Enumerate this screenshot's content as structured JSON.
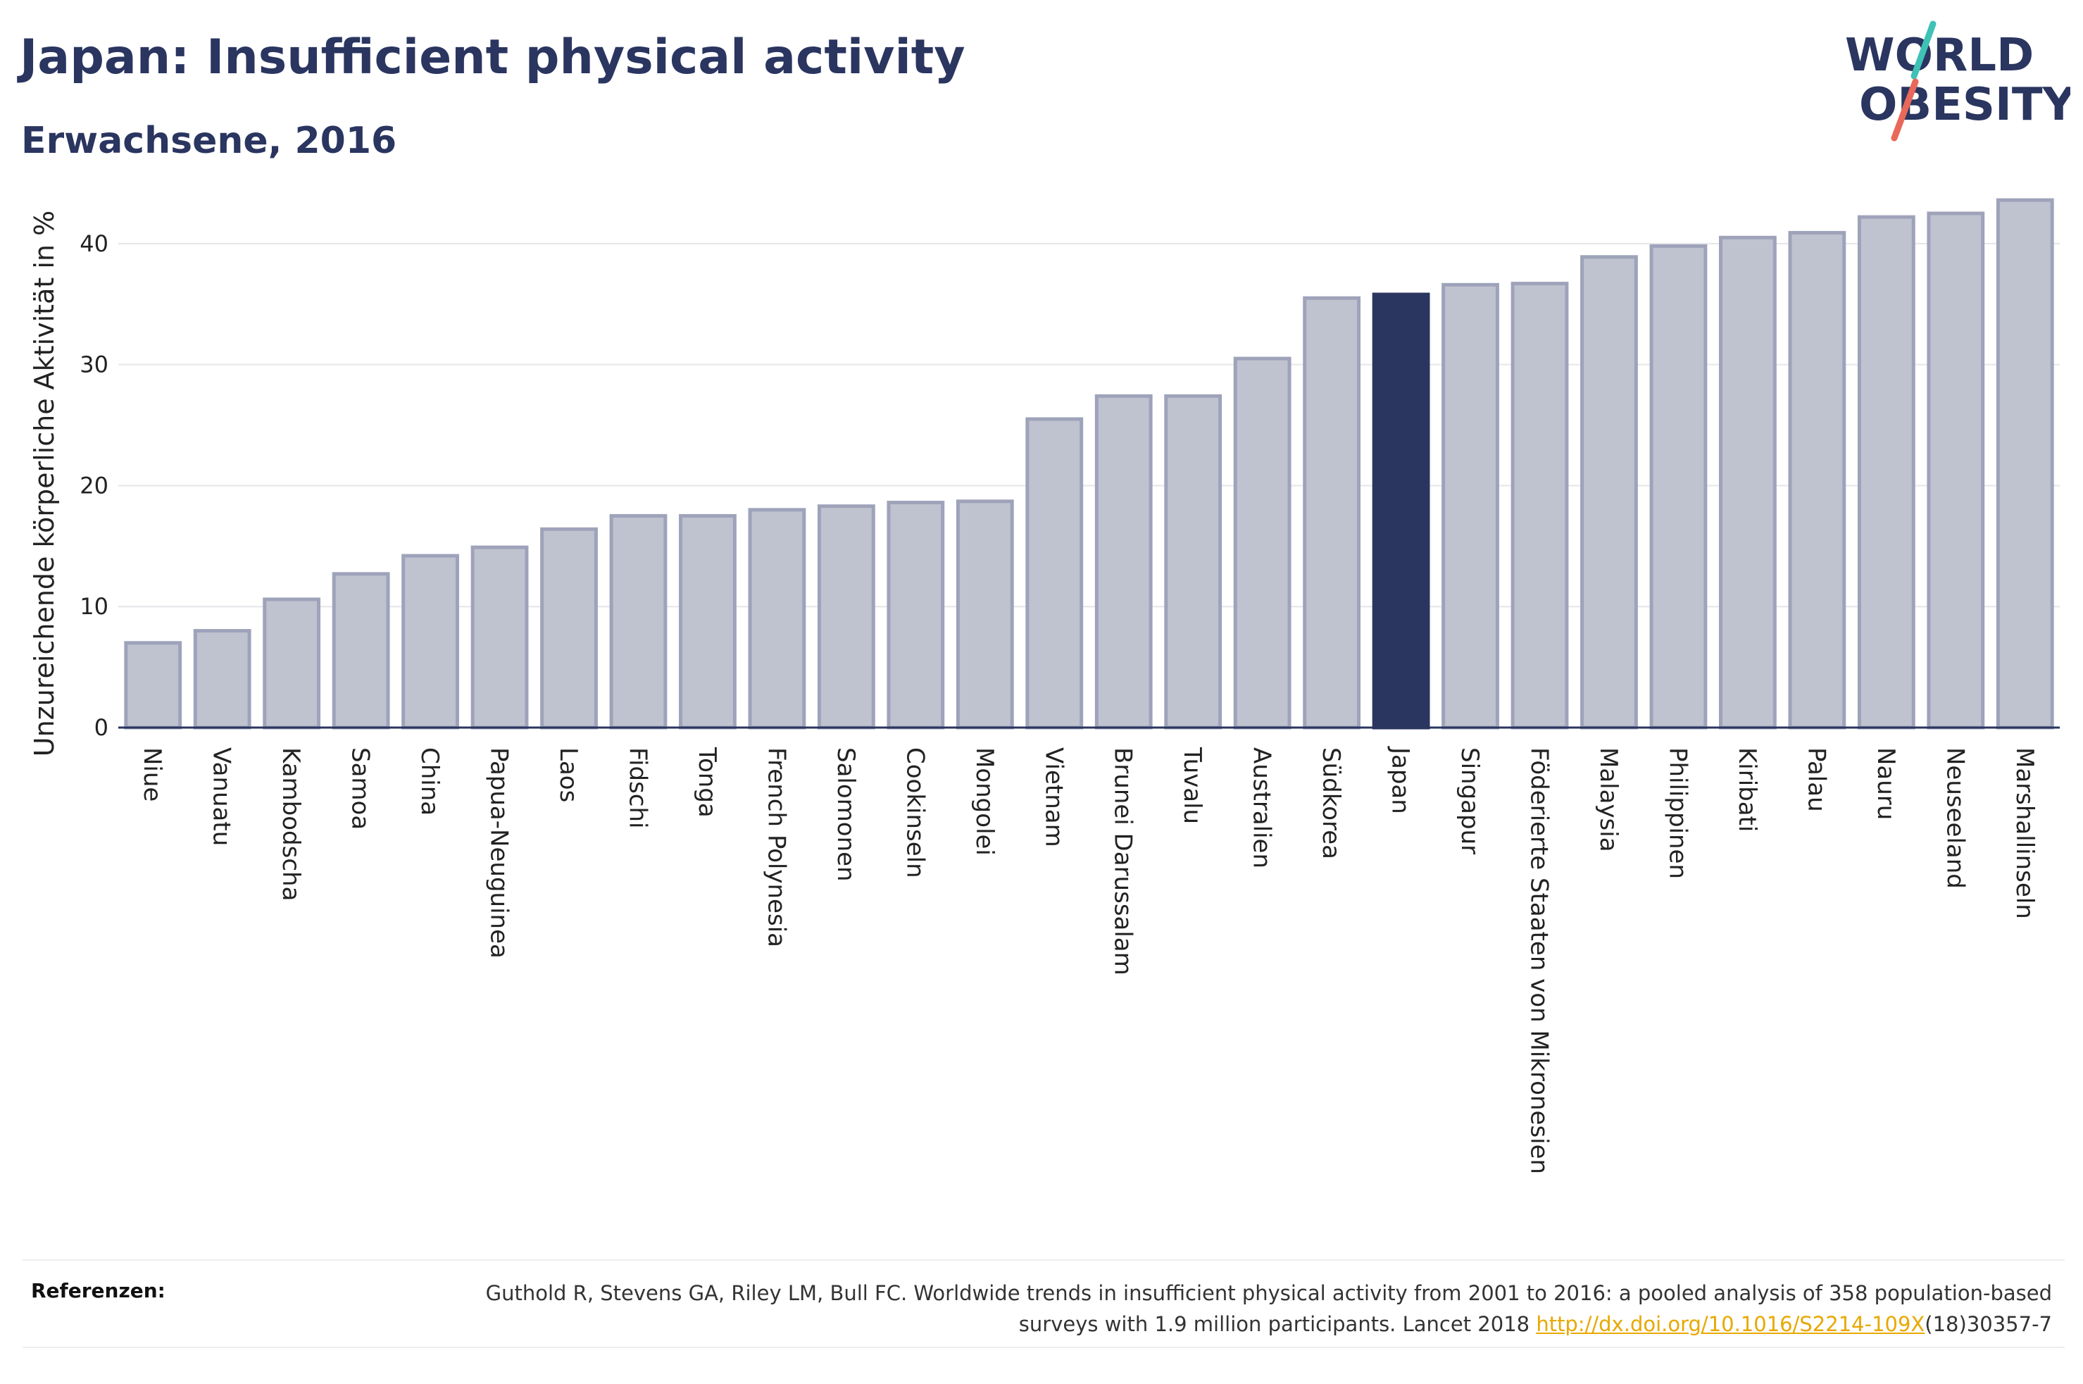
{
  "header": {
    "title": "Japan: Insufficient physical activity",
    "subtitle": "Erwachsene, 2016"
  },
  "logo": {
    "line1": "WORLD",
    "line2": "OBESITY"
  },
  "chart_data": {
    "type": "bar",
    "ylabel": "Unzureichende körperliche Aktivität in %",
    "ylim": [
      0,
      45
    ],
    "yticks": [
      0,
      10,
      20,
      30,
      40
    ],
    "grid": true,
    "highlight": "Japan",
    "colors": {
      "bar": "#bfc2cf",
      "bar_stroke": "#9ea3ba",
      "highlight": "#2a3560",
      "axis": "#2a3560",
      "grid": "#e6e6ea"
    },
    "categories": [
      "Niue",
      "Vanuatu",
      "Kambodscha",
      "Samoa",
      "China",
      "Papua-Neuguinea",
      "Laos",
      "Fidschi",
      "Tonga",
      "French Polynesia",
      "Salomonen",
      "Cookinseln",
      "Mongolei",
      "Vietnam",
      "Brunei Darussalam",
      "Tuvalu",
      "Australien",
      "Südkorea",
      "Japan",
      "Singapur",
      "Föderierte Staaten von Mikronesien",
      "Malaysia",
      "Philippinen",
      "Kiribati",
      "Palau",
      "Nauru",
      "Neuseeland",
      "Marshallinseln"
    ],
    "values": [
      7.0,
      8.0,
      10.6,
      12.7,
      14.2,
      14.9,
      16.4,
      17.5,
      17.5,
      18.0,
      18.3,
      18.6,
      18.7,
      25.5,
      27.4,
      27.4,
      30.5,
      35.5,
      35.8,
      36.6,
      36.7,
      38.9,
      39.8,
      40.5,
      40.9,
      42.2,
      42.5,
      43.6
    ]
  },
  "references": {
    "label": "Referenzen:",
    "text_before": "Guthold R, Stevens GA, Riley LM, Bull FC. Worldwide trends in insufficient physical activity from 2001 to 2016: a pooled analysis of 358 population-based surveys with 1.9 million participants. Lancet 2018 ",
    "link": "http://dx.doi.org/10.1016/S2214-109X",
    "text_after": "(18)30357-7"
  }
}
